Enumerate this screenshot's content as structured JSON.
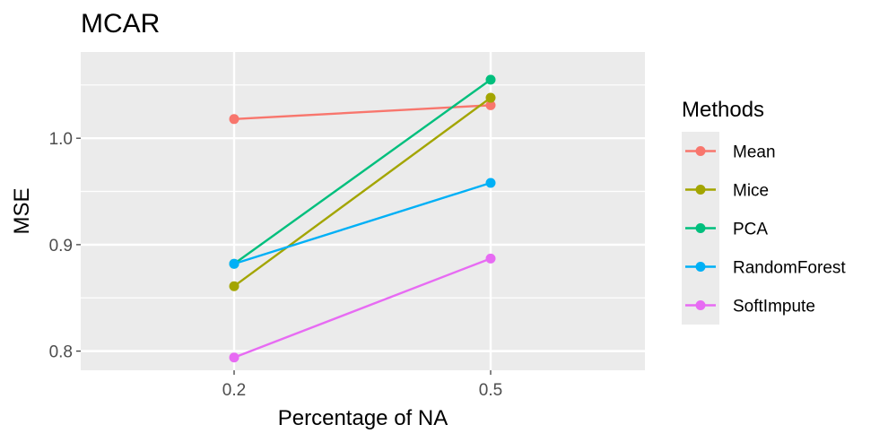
{
  "chart_data": {
    "type": "line",
    "title": "MCAR",
    "xlabel": "Percentage of NA",
    "ylabel": "MSE",
    "categories": [
      "0.2",
      "0.5"
    ],
    "ylim": [
      0.782,
      1.081
    ],
    "y_ticks": [
      {
        "value": 0.8,
        "label": "0.8"
      },
      {
        "value": 0.9,
        "label": "0.9"
      },
      {
        "value": 1.0,
        "label": "1.0"
      }
    ],
    "grid": true,
    "legend": {
      "title": "Methods",
      "position": "right"
    },
    "series": [
      {
        "name": "Mean",
        "color": "#F8766D",
        "values": [
          1.018,
          1.031
        ]
      },
      {
        "name": "Mice",
        "color": "#A3A500",
        "values": [
          0.861,
          1.038
        ]
      },
      {
        "name": "PCA",
        "color": "#00BF7D",
        "values": [
          0.882,
          1.055
        ]
      },
      {
        "name": "RandomForest",
        "color": "#00B0F6",
        "values": [
          0.882,
          0.958
        ]
      },
      {
        "name": "SoftImpute",
        "color": "#E76BF3",
        "values": [
          0.794,
          0.887
        ]
      }
    ]
  }
}
